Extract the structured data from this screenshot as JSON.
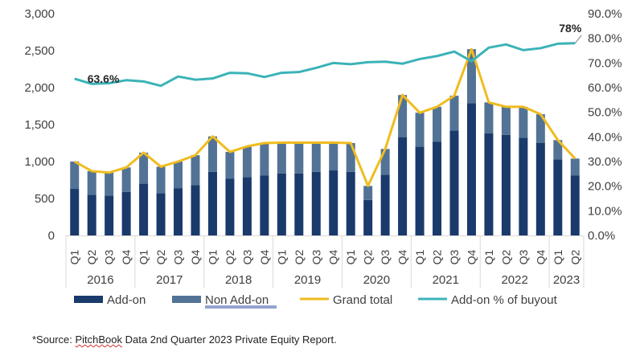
{
  "chart_data": {
    "type": "bar",
    "title": "",
    "xlabel": "",
    "ylabel": "",
    "y2label": "",
    "ylim": [
      0,
      3000
    ],
    "y2lim": [
      0,
      0.9
    ],
    "yticks": [
      "0",
      "500",
      "1,000",
      "1,500",
      "2,000",
      "2,500",
      "3,000"
    ],
    "y2ticks": [
      "0.0%",
      "10.0%",
      "20.0%",
      "30.0%",
      "40.0%",
      "50.0%",
      "60.0%",
      "70.0%",
      "80.0%",
      "90.0%"
    ],
    "grid": false,
    "legend_position": "bottom",
    "years": [
      {
        "label": "2016",
        "count": 4
      },
      {
        "label": "2017",
        "count": 4
      },
      {
        "label": "2018",
        "count": 4
      },
      {
        "label": "2019",
        "count": 4
      },
      {
        "label": "2020",
        "count": 4
      },
      {
        "label": "2021",
        "count": 4
      },
      {
        "label": "2022",
        "count": 4
      },
      {
        "label": "2023",
        "count": 2
      }
    ],
    "categories": [
      "Q1",
      "Q2",
      "Q3",
      "Q4",
      "Q1",
      "Q2",
      "Q3",
      "Q4",
      "Q1",
      "Q2",
      "Q3",
      "Q4",
      "Q1",
      "Q2",
      "Q3",
      "Q4",
      "Q1",
      "Q2",
      "Q3",
      "Q4",
      "Q1",
      "Q2",
      "Q3",
      "Q4",
      "Q1",
      "Q2",
      "Q3",
      "Q4",
      "Q1",
      "Q2"
    ],
    "series": [
      {
        "name": "Add-on",
        "type": "bar",
        "color": "#1a3a6b",
        "values": [
          630,
          550,
          540,
          590,
          700,
          570,
          640,
          680,
          860,
          770,
          790,
          810,
          840,
          840,
          860,
          880,
          860,
          480,
          820,
          1330,
          1200,
          1270,
          1420,
          1790,
          1380,
          1360,
          1320,
          1250,
          1030,
          810
        ]
      },
      {
        "name": "Non Add-on",
        "type": "bar",
        "color": "#527396",
        "values": [
          370,
          320,
          310,
          330,
          420,
          360,
          360,
          405,
          480,
          360,
          415,
          440,
          415,
          415,
          395,
          375,
          390,
          190,
          350,
          570,
          460,
          470,
          470,
          730,
          420,
          380,
          420,
          390,
          260,
          230
        ]
      },
      {
        "name": "Grand total",
        "type": "line",
        "color": "#f0bc1e",
        "values": [
          1000,
          870,
          850,
          920,
          1120,
          930,
          1000,
          1085,
          1340,
          1130,
          1205,
          1250,
          1255,
          1255,
          1255,
          1255,
          1250,
          670,
          1170,
          1900,
          1660,
          1740,
          1890,
          2520,
          1800,
          1740,
          1740,
          1640,
          1290,
          1040
        ]
      },
      {
        "name": "Add-on % of buyout",
        "type": "line",
        "axis": "right",
        "color": "#3bb3b8",
        "values": [
          0.636,
          0.615,
          0.618,
          0.63,
          0.625,
          0.607,
          0.645,
          0.632,
          0.637,
          0.66,
          0.658,
          0.643,
          0.66,
          0.663,
          0.68,
          0.7,
          0.695,
          0.703,
          0.705,
          0.697,
          0.716,
          0.728,
          0.746,
          0.707,
          0.762,
          0.775,
          0.752,
          0.76,
          0.778,
          0.78
        ]
      }
    ],
    "annotations": [
      {
        "text": "63.6%",
        "series": "Add-on % of buyout",
        "index": 0
      },
      {
        "text": "78%",
        "series": "Add-on % of buyout",
        "index": 29
      }
    ]
  },
  "legend": [
    {
      "label": "Add-on",
      "kind": "bar",
      "color": "#1a3a6b"
    },
    {
      "label": "Non Add-on",
      "kind": "bar",
      "color": "#527396"
    },
    {
      "label": "Grand total",
      "kind": "line",
      "color": "#f0bc1e"
    },
    {
      "label": "Add-on % of buyout",
      "kind": "line",
      "color": "#3bb3b8"
    }
  ],
  "source": {
    "prefix": "*Source: ",
    "squiggle": "PitchBook",
    "suffix": " Data 2nd Quarter 2023 Private Equity Report."
  }
}
